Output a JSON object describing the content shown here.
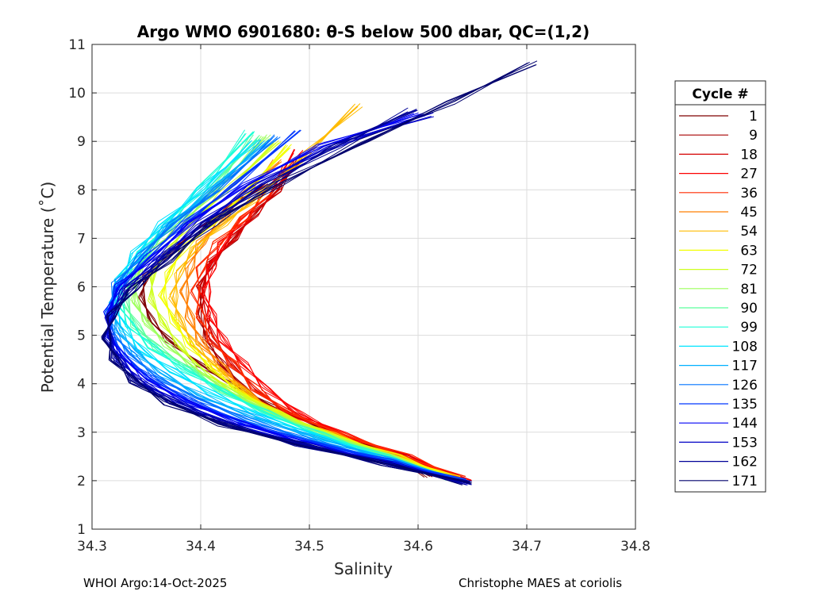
{
  "chart_data": {
    "type": "line",
    "title": "Argo WMO 6901680: θ-S below 500 dbar,  QC=(1,2)",
    "xlabel": "Salinity",
    "ylabel": "Potential Temperature (˚C)",
    "xlim": [
      34.3,
      34.8
    ],
    "ylim": [
      1,
      11
    ],
    "xticks": [
      "34.3",
      "34.4",
      "34.5",
      "34.6",
      "34.7",
      "34.8"
    ],
    "yticks": [
      "1",
      "2",
      "3",
      "4",
      "5",
      "6",
      "7",
      "8",
      "9",
      "10",
      "11"
    ],
    "grid": true,
    "legend": {
      "title": "Cycle #",
      "position": "right",
      "entries": [
        {
          "label": "1",
          "color": "#7f0000"
        },
        {
          "label": "9",
          "color": "#a70000"
        },
        {
          "label": "18",
          "color": "#d40000"
        },
        {
          "label": "27",
          "color": "#fc0000"
        },
        {
          "label": "36",
          "color": "#ff2a00"
        },
        {
          "label": "45",
          "color": "#ff7f00"
        },
        {
          "label": "54",
          "color": "#ffbb00"
        },
        {
          "label": "63",
          "color": "#f3ff00"
        },
        {
          "label": "72",
          "color": "#cfff1f"
        },
        {
          "label": "81",
          "color": "#9cff5a"
        },
        {
          "label": "90",
          "color": "#5aff9c"
        },
        {
          "label": "99",
          "color": "#1fffd7"
        },
        {
          "label": "108",
          "color": "#00e4ff"
        },
        {
          "label": "117",
          "color": "#00b0ff"
        },
        {
          "label": "126",
          "color": "#0074ff"
        },
        {
          "label": "135",
          "color": "#0038ff"
        },
        {
          "label": "144",
          "color": "#0000f5"
        },
        {
          "label": "153",
          "color": "#0000c6"
        },
        {
          "label": "162",
          "color": "#000097"
        },
        {
          "label": "171",
          "color": "#00006e"
        }
      ]
    },
    "series": [
      {
        "name": "1",
        "color": "#7f0000",
        "x": [
          34.609,
          34.57,
          34.52,
          34.47,
          34.43,
          34.4,
          34.37,
          34.355,
          34.345,
          34.35,
          34.37,
          34.4,
          34.43,
          34.46
        ],
        "y": [
          2.1,
          2.6,
          3.0,
          3.5,
          3.95,
          4.4,
          4.9,
          5.3,
          5.8,
          6.2,
          6.7,
          7.2,
          7.7,
          8.1
        ]
      },
      {
        "name": "9",
        "color": "#a70000",
        "x": [
          34.64,
          34.58,
          34.52,
          34.47,
          34.44,
          34.42,
          34.405,
          34.4,
          34.4,
          34.41,
          34.43,
          34.45,
          34.47,
          34.49
        ],
        "y": [
          2.05,
          2.5,
          2.95,
          3.4,
          3.9,
          4.4,
          4.9,
          5.4,
          6.0,
          6.5,
          7.0,
          7.5,
          8.0,
          8.6
        ]
      },
      {
        "name": "18",
        "color": "#d40000",
        "x": [
          34.643,
          34.59,
          34.53,
          34.48,
          34.45,
          34.43,
          34.41,
          34.405,
          34.4,
          34.41,
          34.43,
          34.45,
          34.47,
          34.48
        ],
        "y": [
          2.0,
          2.5,
          2.95,
          3.4,
          3.9,
          4.4,
          4.95,
          5.5,
          6.0,
          6.5,
          7.0,
          7.5,
          8.0,
          8.4
        ]
      },
      {
        "name": "27",
        "color": "#fc0000",
        "x": [
          34.645,
          34.59,
          34.53,
          34.49,
          34.46,
          34.44,
          34.42,
          34.41,
          34.405,
          34.41,
          34.42,
          34.44,
          34.46,
          34.49
        ],
        "y": [
          2.0,
          2.5,
          2.95,
          3.4,
          3.9,
          4.4,
          4.9,
          5.4,
          5.9,
          6.4,
          6.9,
          7.4,
          7.9,
          8.8
        ]
      },
      {
        "name": "36",
        "color": "#ff2a00",
        "x": [
          34.64,
          34.59,
          34.53,
          34.48,
          34.45,
          34.43,
          34.41,
          34.4,
          34.395,
          34.4,
          34.415,
          34.44,
          34.46,
          34.48
        ],
        "y": [
          2.05,
          2.5,
          2.95,
          3.4,
          3.9,
          4.4,
          4.9,
          5.4,
          5.9,
          6.4,
          6.9,
          7.4,
          7.9,
          8.5
        ]
      },
      {
        "name": "45",
        "color": "#ff7f00",
        "x": [
          34.635,
          34.58,
          34.52,
          34.47,
          34.44,
          34.42,
          34.4,
          34.39,
          34.385,
          34.39,
          34.4,
          34.42,
          34.44,
          34.47
        ],
        "y": [
          2.05,
          2.5,
          2.95,
          3.4,
          3.85,
          4.35,
          4.85,
          5.35,
          5.9,
          6.4,
          6.9,
          7.4,
          7.9,
          8.6
        ]
      },
      {
        "name": "54",
        "color": "#ffbb00",
        "x": [
          34.635,
          34.58,
          34.52,
          34.47,
          34.44,
          34.415,
          34.395,
          34.38,
          34.375,
          34.38,
          34.395,
          34.42,
          34.45,
          34.49,
          34.545
        ],
        "y": [
          2.05,
          2.5,
          2.95,
          3.4,
          3.85,
          4.3,
          4.8,
          5.3,
          5.8,
          6.3,
          6.8,
          7.3,
          7.8,
          8.6,
          9.75
        ]
      },
      {
        "name": "63",
        "color": "#f3ff00",
        "x": [
          34.635,
          34.58,
          34.52,
          34.47,
          34.435,
          34.41,
          34.39,
          34.375,
          34.365,
          34.37,
          34.385,
          34.41,
          34.44,
          34.48
        ],
        "y": [
          2.05,
          2.5,
          2.95,
          3.4,
          3.85,
          4.3,
          4.8,
          5.3,
          5.8,
          6.3,
          6.8,
          7.3,
          7.9,
          8.9
        ]
      },
      {
        "name": "72",
        "color": "#cfff1f",
        "x": [
          34.63,
          34.575,
          34.52,
          34.47,
          34.43,
          34.4,
          34.38,
          34.365,
          34.355,
          34.355,
          34.37,
          34.39,
          34.42,
          34.47
        ],
        "y": [
          2.05,
          2.5,
          2.95,
          3.4,
          3.85,
          4.3,
          4.8,
          5.25,
          5.75,
          6.25,
          6.75,
          7.3,
          7.9,
          9.0
        ]
      },
      {
        "name": "81",
        "color": "#9cff5a",
        "x": [
          34.63,
          34.575,
          34.515,
          34.465,
          34.425,
          34.395,
          34.37,
          34.35,
          34.34,
          34.34,
          34.355,
          34.38,
          34.41,
          34.46
        ],
        "y": [
          2.05,
          2.5,
          2.95,
          3.4,
          3.85,
          4.3,
          4.8,
          5.25,
          5.7,
          6.2,
          6.7,
          7.25,
          7.9,
          9.1
        ]
      },
      {
        "name": "90",
        "color": "#5aff9c",
        "x": [
          34.63,
          34.57,
          34.51,
          34.46,
          34.42,
          34.39,
          34.36,
          34.34,
          34.33,
          34.335,
          34.35,
          34.375,
          34.41,
          34.45
        ],
        "y": [
          2.05,
          2.5,
          2.95,
          3.4,
          3.85,
          4.3,
          4.75,
          5.2,
          5.7,
          6.2,
          6.7,
          7.3,
          8.0,
          9.1
        ]
      },
      {
        "name": "99",
        "color": "#1fffd7",
        "x": [
          34.63,
          34.57,
          34.51,
          34.46,
          34.42,
          34.385,
          34.355,
          34.335,
          34.325,
          34.33,
          34.345,
          34.37,
          34.4,
          34.445
        ],
        "y": [
          2.05,
          2.5,
          2.95,
          3.4,
          3.85,
          4.3,
          4.75,
          5.2,
          5.7,
          6.2,
          6.7,
          7.3,
          8.0,
          9.2
        ]
      },
      {
        "name": "108",
        "color": "#00e4ff",
        "x": [
          34.635,
          34.57,
          34.51,
          34.455,
          34.41,
          34.375,
          34.345,
          34.33,
          34.32,
          34.325,
          34.34,
          34.365,
          34.4,
          34.45
        ],
        "y": [
          2.0,
          2.45,
          2.9,
          3.35,
          3.8,
          4.25,
          4.7,
          5.15,
          5.65,
          6.15,
          6.7,
          7.3,
          8.0,
          9.0
        ]
      },
      {
        "name": "117",
        "color": "#00b0ff",
        "x": [
          34.64,
          34.575,
          34.51,
          34.45,
          34.4,
          34.365,
          34.34,
          34.325,
          34.318,
          34.325,
          34.345,
          34.37,
          34.41,
          34.46
        ],
        "y": [
          2.0,
          2.45,
          2.85,
          3.3,
          3.75,
          4.2,
          4.65,
          5.1,
          5.55,
          6.1,
          6.65,
          7.25,
          8.0,
          9.0
        ]
      },
      {
        "name": "126",
        "color": "#0074ff",
        "x": [
          34.64,
          34.575,
          34.505,
          34.445,
          34.395,
          34.36,
          34.335,
          34.32,
          34.315,
          34.322,
          34.345,
          34.375,
          34.415,
          34.47
        ],
        "y": [
          2.0,
          2.4,
          2.8,
          3.25,
          3.7,
          4.15,
          4.6,
          5.05,
          5.5,
          6.05,
          6.65,
          7.3,
          8.0,
          9.1
        ]
      },
      {
        "name": "135",
        "color": "#0038ff",
        "x": [
          34.642,
          34.575,
          34.5,
          34.44,
          34.39,
          34.355,
          34.33,
          34.318,
          34.315,
          34.325,
          34.35,
          34.385,
          34.43,
          34.49
        ],
        "y": [
          2.0,
          2.4,
          2.8,
          3.2,
          3.65,
          4.1,
          4.55,
          5.0,
          5.45,
          6.0,
          6.6,
          7.3,
          8.1,
          9.2
        ]
      },
      {
        "name": "144",
        "color": "#0000f5",
        "x": [
          34.645,
          34.575,
          34.5,
          34.435,
          34.385,
          34.35,
          34.328,
          34.316,
          34.314,
          34.325,
          34.355,
          34.39,
          34.44,
          34.51,
          34.6
        ],
        "y": [
          1.95,
          2.35,
          2.75,
          3.2,
          3.65,
          4.1,
          4.55,
          5.0,
          5.45,
          6.0,
          6.6,
          7.3,
          8.1,
          8.9,
          9.55
        ]
      },
      {
        "name": "153",
        "color": "#0000c6",
        "x": [
          34.645,
          34.575,
          34.495,
          34.43,
          34.38,
          34.345,
          34.325,
          34.315,
          34.316,
          34.33,
          34.36,
          34.4,
          34.45,
          34.52,
          34.61
        ],
        "y": [
          1.95,
          2.35,
          2.75,
          3.15,
          3.6,
          4.05,
          4.5,
          4.95,
          5.4,
          5.95,
          6.55,
          7.3,
          8.1,
          8.9,
          9.55
        ]
      },
      {
        "name": "162",
        "color": "#000097",
        "x": [
          34.645,
          34.57,
          34.49,
          34.425,
          34.375,
          34.34,
          34.322,
          34.314,
          34.317,
          34.335,
          34.365,
          34.405,
          34.46,
          34.525,
          34.595
        ],
        "y": [
          1.95,
          2.35,
          2.75,
          3.15,
          3.6,
          4.05,
          4.5,
          4.95,
          5.4,
          5.95,
          6.55,
          7.3,
          8.1,
          8.9,
          9.65
        ]
      },
      {
        "name": "171",
        "color": "#00006e",
        "x": [
          34.645,
          34.57,
          34.49,
          34.42,
          34.37,
          34.338,
          34.32,
          34.313,
          34.318,
          34.338,
          34.37,
          34.41,
          34.47,
          34.55,
          34.63,
          34.705
        ],
        "y": [
          1.95,
          2.35,
          2.75,
          3.15,
          3.6,
          4.05,
          4.5,
          4.95,
          5.4,
          5.95,
          6.55,
          7.3,
          8.1,
          9.0,
          9.8,
          10.62
        ]
      }
    ]
  },
  "footer": {
    "left": "WHOI Argo:14-Oct-2025",
    "right": "Christophe MAES at coriolis"
  }
}
